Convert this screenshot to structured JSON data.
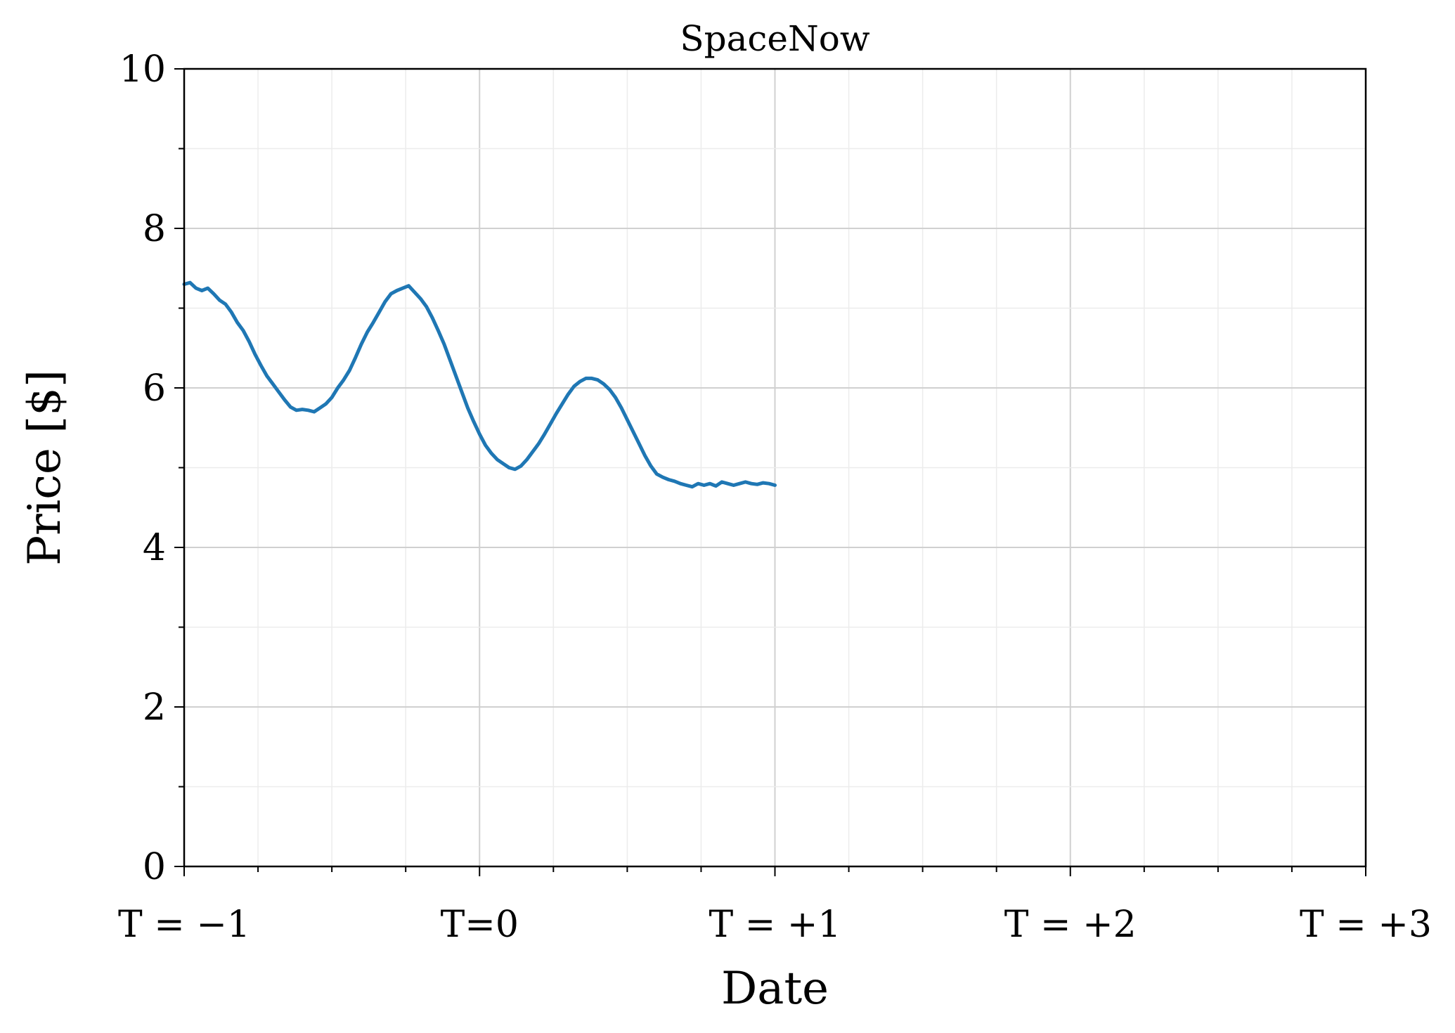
{
  "chart_data": {
    "type": "line",
    "title": "SpaceNow",
    "xlabel": "Date",
    "ylabel": "Price [$]",
    "xlim": [
      -1,
      3
    ],
    "ylim": [
      0,
      10
    ],
    "x_ticks": [
      -1,
      0,
      1,
      2,
      3
    ],
    "x_tick_labels": [
      "T = −1",
      "T=0",
      "T = +1",
      "T = +2",
      "T = +3"
    ],
    "y_ticks": [
      0,
      2,
      4,
      6,
      8,
      10
    ],
    "y_tick_labels": [
      "0",
      "2",
      "4",
      "6",
      "8",
      "10"
    ],
    "grid": true,
    "legend": "none",
    "series": [
      {
        "color": "#1f77b4",
        "x": [
          -1.0,
          -0.98,
          -0.96,
          -0.94,
          -0.92,
          -0.9,
          -0.88,
          -0.86,
          -0.84,
          -0.82,
          -0.8,
          -0.78,
          -0.76,
          -0.74,
          -0.72,
          -0.7,
          -0.68,
          -0.66,
          -0.64,
          -0.62,
          -0.6,
          -0.58,
          -0.56,
          -0.54,
          -0.52,
          -0.5,
          -0.48,
          -0.46,
          -0.44,
          -0.42,
          -0.4,
          -0.38,
          -0.36,
          -0.34,
          -0.32,
          -0.3,
          -0.28,
          -0.26,
          -0.24,
          -0.22,
          -0.2,
          -0.18,
          -0.16,
          -0.14,
          -0.12,
          -0.1,
          -0.08,
          -0.06,
          -0.04,
          -0.02,
          0.0,
          0.02,
          0.04,
          0.06,
          0.08,
          0.1,
          0.12,
          0.14,
          0.16,
          0.18,
          0.2,
          0.22,
          0.24,
          0.26,
          0.28,
          0.3,
          0.32,
          0.34,
          0.36,
          0.38,
          0.4,
          0.42,
          0.44,
          0.46,
          0.48,
          0.5,
          0.52,
          0.54,
          0.56,
          0.58,
          0.6,
          0.62,
          0.64,
          0.66,
          0.68,
          0.7,
          0.72,
          0.74,
          0.76,
          0.78,
          0.8,
          0.82,
          0.84,
          0.86,
          0.88,
          0.9,
          0.92,
          0.94,
          0.96,
          0.98,
          1.0
        ],
        "y": [
          7.3,
          7.32,
          7.25,
          7.22,
          7.25,
          7.18,
          7.1,
          7.05,
          6.95,
          6.82,
          6.72,
          6.58,
          6.42,
          6.28,
          6.15,
          6.05,
          5.95,
          5.85,
          5.76,
          5.72,
          5.73,
          5.72,
          5.7,
          5.75,
          5.8,
          5.88,
          6.0,
          6.1,
          6.22,
          6.38,
          6.55,
          6.7,
          6.82,
          6.95,
          7.08,
          7.18,
          7.22,
          7.25,
          7.28,
          7.2,
          7.12,
          7.02,
          6.88,
          6.72,
          6.55,
          6.35,
          6.15,
          5.95,
          5.75,
          5.58,
          5.42,
          5.28,
          5.18,
          5.1,
          5.05,
          5.0,
          4.98,
          5.02,
          5.1,
          5.2,
          5.3,
          5.42,
          5.55,
          5.68,
          5.8,
          5.92,
          6.02,
          6.08,
          6.12,
          6.12,
          6.1,
          6.05,
          5.98,
          5.88,
          5.75,
          5.6,
          5.45,
          5.3,
          5.15,
          5.02,
          4.92,
          4.88,
          4.85,
          4.83,
          4.8,
          4.78,
          4.76,
          4.8,
          4.78,
          4.8,
          4.77,
          4.82,
          4.8,
          4.78,
          4.8,
          4.82,
          4.8,
          4.79,
          4.81,
          4.8,
          4.78
        ]
      }
    ]
  }
}
